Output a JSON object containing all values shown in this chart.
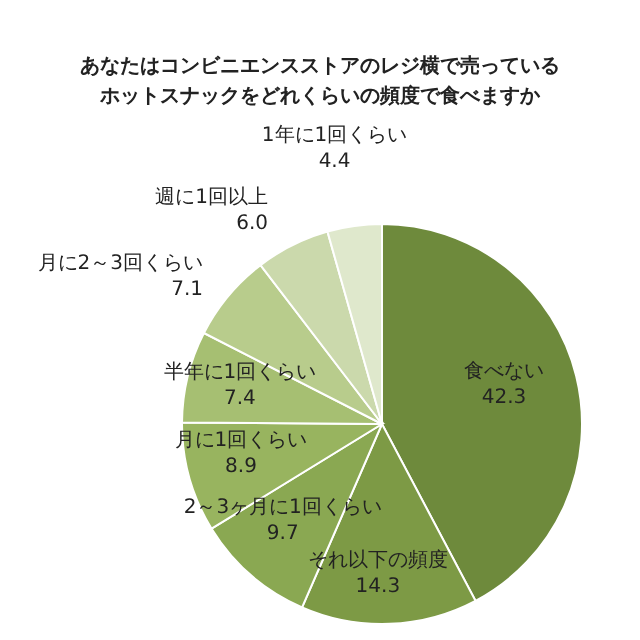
{
  "chart_data": {
    "type": "pie",
    "title": "あなたはコンビニエンスストアのレジ横で売っているホットスナックをどれくらいの頻度で食べますか",
    "categories": [
      "食べない",
      "それ以下の頻度",
      "2～3ヶ月に1回くらい",
      "月に1回くらい",
      "半年に1回くらい",
      "月に2～3回くらい",
      "週に1回以上",
      "1年に1回くらい"
    ],
    "values": [
      42.3,
      14.3,
      9.7,
      8.9,
      7.4,
      7.1,
      6.0,
      4.4
    ],
    "value_labels": [
      "42.3",
      "14.3",
      "9.7",
      "8.9",
      "7.4",
      "7.1",
      "6.0",
      "4.4"
    ],
    "colors": [
      "#6e8a3c",
      "#7d9a45",
      "#8aa852",
      "#98b45f",
      "#a6bf72",
      "#b8cc8c",
      "#cbd9ac",
      "#dfe8cc"
    ],
    "legend": false
  }
}
